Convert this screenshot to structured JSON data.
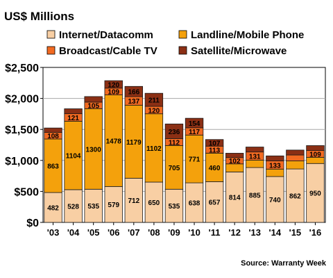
{
  "chart_data": {
    "type": "bar",
    "stacked": true,
    "title": "US$ Millions",
    "source": "Source:  Warranty  Week",
    "categories": [
      "'03",
      "'04",
      "'05",
      "'06",
      "'07",
      "'08",
      "'09",
      "'10",
      "'11",
      "'12",
      "'13",
      "'14",
      "'15",
      "'16"
    ],
    "ylim": [
      0,
      2500
    ],
    "yticks": [
      {
        "value": 0,
        "label": "$0"
      },
      {
        "value": 500,
        "label": "$500"
      },
      {
        "value": 1000,
        "label": "$1,000"
      },
      {
        "value": 1500,
        "label": "$1,500"
      },
      {
        "value": 2000,
        "label": "$2,000"
      },
      {
        "value": 2500,
        "label": "$2,500"
      }
    ],
    "grid": true,
    "legend_position": "top",
    "series": [
      {
        "name": "Internet/Datacomm",
        "color": "#f8cfa4",
        "values": [
          482,
          528,
          535,
          579,
          712,
          650,
          535,
          638,
          657,
          814,
          885,
          740,
          862,
          950
        ],
        "labels": [
          "482",
          "528",
          "535",
          "579",
          "712",
          "650",
          "535",
          "638",
          "657",
          "814",
          "885",
          "740",
          "862",
          "950"
        ]
      },
      {
        "name": "Landline/Mobile Phone",
        "color": "#f4a10c",
        "values": [
          863,
          1104,
          1300,
          1478,
          1179,
          1102,
          705,
          771,
          460,
          130,
          120,
          120,
          130,
          100
        ],
        "labels": [
          "863",
          "1104",
          "1300",
          "1478",
          "1179",
          "1102",
          "705",
          "771",
          "460",
          "",
          "",
          "",
          "",
          ""
        ]
      },
      {
        "name": "Broadcast/Cable TV",
        "color": "#f26a21",
        "values": [
          108,
          121,
          105,
          109,
          137,
          120,
          112,
          117,
          113,
          102,
          131,
          133,
          95,
          109
        ],
        "labels": [
          "108",
          "121",
          "105",
          "109",
          "137",
          "120",
          "112",
          "117",
          "113",
          "102",
          "131",
          "133",
          "",
          "109"
        ]
      },
      {
        "name": "Satellite/Microwave",
        "color": "#8b2f14",
        "values": [
          70,
          80,
          90,
          120,
          166,
          211,
          236,
          154,
          107,
          70,
          80,
          80,
          80,
          80
        ],
        "labels": [
          "",
          "",
          "",
          "120",
          "166",
          "211",
          "236",
          "154",
          "107",
          "",
          "",
          "",
          "",
          ""
        ]
      }
    ]
  }
}
